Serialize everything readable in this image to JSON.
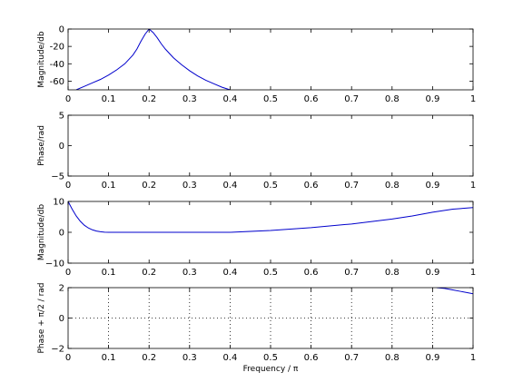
{
  "background": "#ffffff",
  "line_color": "#0000cc",
  "axis_color": "#000000",
  "chart_data": [
    {
      "type": "line",
      "ylabel": "Magnitude/db",
      "xlim": [
        0,
        1
      ],
      "ylim": [
        -70,
        0
      ],
      "xticks": [
        0,
        0.1,
        0.2,
        0.3,
        0.4,
        0.5,
        0.6,
        0.7,
        0.8,
        0.9,
        1
      ],
      "xtick_labels": [
        "0",
        "0.1",
        "0.2",
        "0.3",
        "0.4",
        "0.5",
        "0.6",
        "0.7",
        "0.8",
        "0.9",
        "1"
      ],
      "yticks": [
        -60,
        -40,
        -20,
        0
      ],
      "ytick_labels": [
        "-60",
        "-40",
        "-20",
        "0"
      ],
      "grid": false,
      "series": [
        {
          "x": [
            0.02,
            0.04,
            0.06,
            0.08,
            0.1,
            0.12,
            0.14,
            0.16,
            0.17,
            0.18,
            0.19,
            0.2,
            0.21,
            0.22,
            0.23,
            0.24,
            0.26,
            0.28,
            0.3,
            0.32,
            0.34,
            0.36,
            0.38,
            0.4
          ],
          "y": [
            -70,
            -66,
            -62,
            -58,
            -53,
            -47,
            -40,
            -30,
            -23,
            -14,
            -6,
            0,
            -4,
            -10,
            -17,
            -23,
            -33,
            -41,
            -48,
            -54,
            -59,
            -63,
            -67,
            -70
          ]
        }
      ]
    },
    {
      "type": "line",
      "ylabel": "Phase/rad",
      "xlim": [
        0,
        1
      ],
      "ylim": [
        -5,
        5
      ],
      "xticks": [
        0,
        0.1,
        0.2,
        0.3,
        0.4,
        0.5,
        0.6,
        0.7,
        0.8,
        0.9,
        1
      ],
      "xtick_labels": [
        "0",
        "0.1",
        "0.2",
        "0.3",
        "0.4",
        "0.5",
        "0.6",
        "0.7",
        "0.8",
        "0.9",
        "1"
      ],
      "yticks": [
        -5,
        0,
        5
      ],
      "ytick_labels": [
        "−5",
        "0",
        "5"
      ],
      "grid": false,
      "series": []
    },
    {
      "type": "line",
      "ylabel": "Magnitude/db",
      "xlim": [
        0,
        1
      ],
      "ylim": [
        -10,
        10
      ],
      "xticks": [
        0,
        0.1,
        0.2,
        0.3,
        0.4,
        0.5,
        0.6,
        0.7,
        0.8,
        0.9,
        1
      ],
      "xtick_labels": [
        "0",
        "0.1",
        "0.2",
        "0.3",
        "0.4",
        "0.5",
        "0.6",
        "0.7",
        "0.8",
        "0.9",
        "1"
      ],
      "yticks": [
        -10,
        0,
        10
      ],
      "ytick_labels": [
        "−10",
        "0",
        "10"
      ],
      "grid": false,
      "series": [
        {
          "x": [
            0,
            0.01,
            0.02,
            0.03,
            0.04,
            0.05,
            0.06,
            0.07,
            0.08,
            0.09,
            0.1,
            0.15,
            0.2,
            0.3,
            0.4,
            0.5,
            0.6,
            0.7,
            0.8,
            0.85,
            0.9,
            0.95,
            1
          ],
          "y": [
            10,
            7.5,
            5.3,
            3.6,
            2.3,
            1.4,
            0.8,
            0.4,
            0.2,
            0.05,
            0,
            0,
            0,
            0,
            0,
            0.6,
            1.5,
            2.7,
            4.3,
            5.3,
            6.5,
            7.5,
            8
          ]
        }
      ]
    },
    {
      "type": "line",
      "ylabel": "Phase + π/2 / rad",
      "xlabel": "Frequency / π",
      "xlim": [
        0,
        1
      ],
      "ylim": [
        -2,
        2
      ],
      "xticks": [
        0,
        0.1,
        0.2,
        0.3,
        0.4,
        0.5,
        0.6,
        0.7,
        0.8,
        0.9,
        1
      ],
      "xtick_labels": [
        "0",
        "0.1",
        "0.2",
        "0.3",
        "0.4",
        "0.5",
        "0.6",
        "0.7",
        "0.8",
        "0.9",
        "1"
      ],
      "yticks": [
        -2,
        0,
        2
      ],
      "ytick_labels": [
        "−2",
        "0",
        "2"
      ],
      "grid": true,
      "series": [
        {
          "x": [
            0.91,
            0.93,
            0.95,
            0.97,
            0.99,
            1
          ],
          "y": [
            2,
            1.95,
            1.85,
            1.75,
            1.65,
            1.6
          ]
        }
      ]
    }
  ]
}
